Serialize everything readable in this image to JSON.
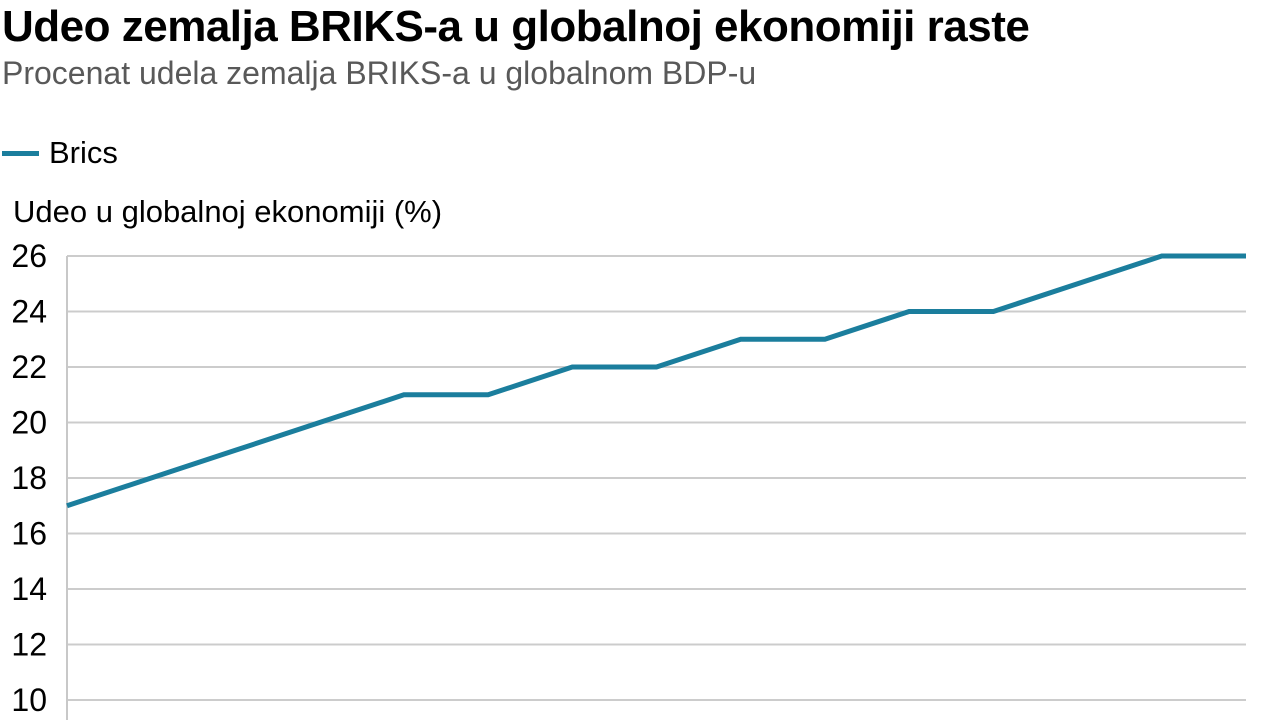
{
  "header": {
    "title": "Udeo zemalja BRIKS-a u globalnoj ekonomiji raste",
    "subtitle": "Procenat udela zemalja BRIKS-a u globalnom BDP-u"
  },
  "legend": {
    "series_label": "Brics"
  },
  "axis": {
    "y_title": "Udeo u globalnoj ekonomiji (%)"
  },
  "colors": {
    "line": "#1b7e9d",
    "grid": "#cccccc",
    "axis_line": "#c8c8c8",
    "title": "#000000",
    "subtitle": "#595959",
    "tick_label": "#000000"
  },
  "chart_data": {
    "type": "line",
    "title": "Udeo zemalja BRIKS-a u globalnoj ekonomiji raste",
    "subtitle": "Procenat udela zemalja BRIKS-a u globalnom BDP-u",
    "ylabel": "Udeo u globalnoj ekonomiji (%)",
    "xlabel": "",
    "grid": true,
    "legend_position": "top-left",
    "y_ticks": [
      26,
      24,
      22,
      20,
      18,
      16,
      14,
      12,
      10
    ],
    "ylim_visible": [
      10,
      26
    ],
    "series": [
      {
        "name": "Brics",
        "color": "#1b7e9d",
        "values": [
          17,
          18,
          19,
          20,
          21,
          21,
          22,
          22,
          23,
          23,
          24,
          24,
          25,
          26,
          26
        ]
      }
    ]
  }
}
